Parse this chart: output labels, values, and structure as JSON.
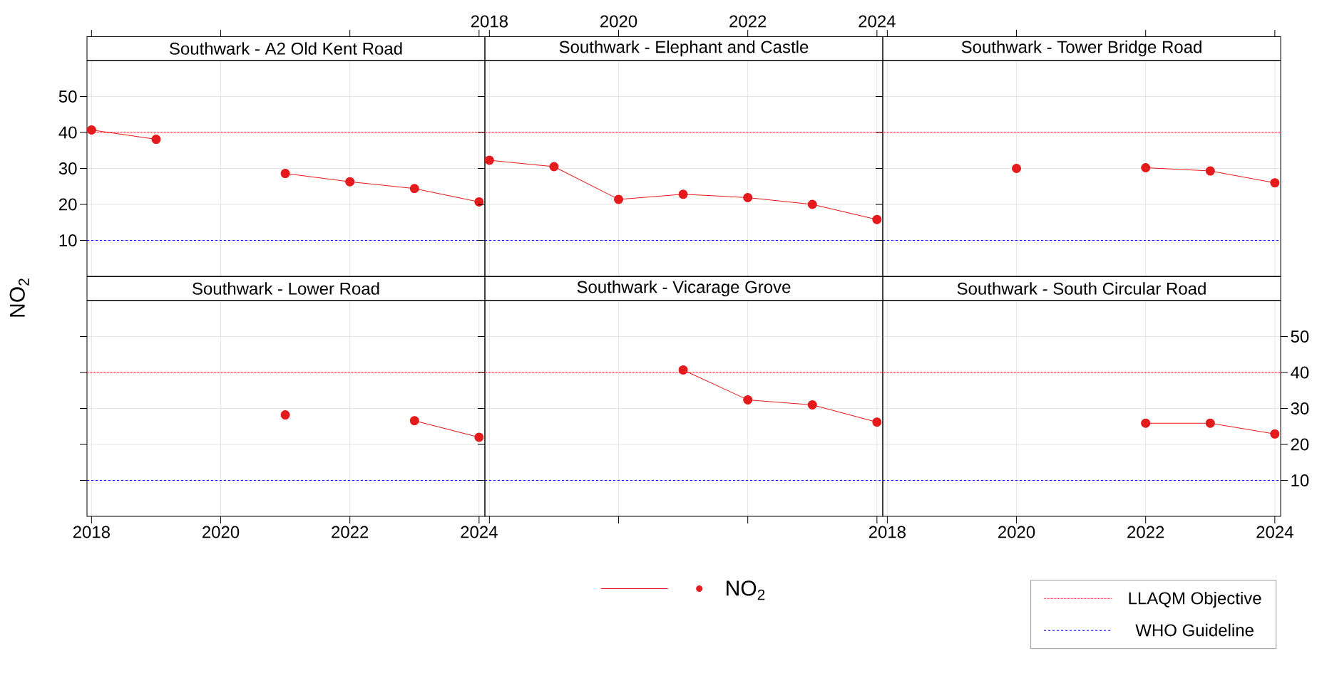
{
  "chart_data": [
    {
      "type": "line",
      "title": "Southwark - A2 Old Kent Road",
      "ylabel": "NO$_{2}$",
      "x": [
        2018,
        2019,
        2020,
        2021,
        2022,
        2023,
        2024
      ],
      "grid": true,
      "marker": "circle",
      "tick_labels": "y",
      "xlim": [
        2017.93,
        2024.09
      ],
      "xticks": [
        2018,
        2020,
        2022,
        2024
      ],
      "ylim": [
        0,
        60
      ],
      "yticks": [
        10,
        20,
        30,
        40,
        50
      ],
      "series": [
        {
          "color": "#e41a1c",
          "values": [
            40.7,
            38.1,
            null,
            28.6,
            26.3,
            24.4,
            20.7
          ]
        }
      ],
      "ref_lines": [
        {
          "axis": "y",
          "value": 40,
          "color": "#ff0000",
          "line_style": "dotted"
        },
        {
          "axis": "y",
          "value": 10,
          "color": "#0000ff",
          "line_style": "dashed"
        }
      ]
    },
    {
      "type": "line",
      "title": "Southwark - Elephant and Castle",
      "x": [
        2018,
        2019,
        2020,
        2021,
        2022,
        2023,
        2024
      ],
      "grid": true,
      "marker": "circle",
      "tick_labels": "x",
      "xlim": [
        2017.93,
        2024.09
      ],
      "xticks": [
        2018,
        2020,
        2022,
        2024
      ],
      "ylim": [
        0,
        60
      ],
      "yticks": [
        10,
        20,
        30,
        40,
        50
      ],
      "series": [
        {
          "color": "#e41a1c",
          "values": [
            32.3,
            30.5,
            21.4,
            22.8,
            21.9,
            20.0,
            15.8
          ]
        }
      ],
      "ref_lines": [
        {
          "axis": "y",
          "value": 40,
          "color": "#ff0000",
          "line_style": "dotted"
        },
        {
          "axis": "y",
          "value": 10,
          "color": "#0000ff",
          "line_style": "dashed"
        }
      ]
    },
    {
      "type": "line",
      "title": "Southwark - Tower Bridge Road",
      "x": [
        2020,
        2021,
        2022,
        2023,
        2024
      ],
      "grid": true,
      "marker": "circle",
      "tick_labels": false,
      "xlim": [
        2017.93,
        2024.09
      ],
      "xticks": [
        2018,
        2020,
        2022,
        2024
      ],
      "ylim": [
        0,
        60
      ],
      "yticks": [
        10,
        20,
        30,
        40,
        50
      ],
      "series": [
        {
          "color": "#e41a1c",
          "values": [
            30.0,
            null,
            30.2,
            29.3,
            26.0
          ]
        }
      ],
      "ref_lines": [
        {
          "axis": "y",
          "value": 40,
          "color": "#ff0000",
          "line_style": "dotted"
        },
        {
          "axis": "y",
          "value": 10,
          "color": "#0000ff",
          "line_style": "dashed"
        }
      ]
    },
    {
      "type": "line",
      "title": "Southwark - Lower Road",
      "x": [
        2021,
        2022,
        2023,
        2024
      ],
      "grid": true,
      "marker": "circle",
      "tick_labels": "x",
      "xlim": [
        2017.93,
        2024.09
      ],
      "xticks": [
        2018,
        2020,
        2022,
        2024
      ],
      "ylim": [
        0,
        60
      ],
      "yticks": [
        10,
        20,
        30,
        40,
        50
      ],
      "series": [
        {
          "color": "#e41a1c",
          "values": [
            28.2,
            null,
            26.6,
            22.0
          ]
        }
      ],
      "ref_lines": [
        {
          "axis": "y",
          "value": 40,
          "color": "#ff0000",
          "line_style": "dotted"
        },
        {
          "axis": "y",
          "value": 10,
          "color": "#0000ff",
          "line_style": "dashed"
        }
      ]
    },
    {
      "type": "line",
      "title": "Southwark - Vicarage Grove",
      "x": [
        2021,
        2022,
        2023,
        2024
      ],
      "grid": true,
      "marker": "circle",
      "tick_labels": false,
      "legend": "bottom",
      "xlim": [
        2017.93,
        2024.09
      ],
      "xticks": [
        2018,
        2020,
        2022,
        2024
      ],
      "ylim": [
        0,
        60
      ],
      "yticks": [
        10,
        20,
        30,
        40,
        50
      ],
      "series": [
        {
          "name": "NO$_{2}$",
          "color": "#e41a1c",
          "values": [
            40.7,
            32.4,
            31.0,
            26.2
          ]
        }
      ],
      "ref_lines": [
        {
          "axis": "y",
          "value": 40,
          "color": "#ff0000",
          "line_style": "dotted"
        },
        {
          "axis": "y",
          "value": 10,
          "color": "#0000ff",
          "line_style": "dashed"
        }
      ]
    },
    {
      "type": "line",
      "title": "Southwark - South Circular Road",
      "x": [
        2022,
        2023,
        2024
      ],
      "grid": true,
      "marker": "circle",
      "legend": "bottom right",
      "xlim": [
        2017.93,
        2024.09
      ],
      "xticks": [
        2018,
        2020,
        2022,
        2024
      ],
      "y2lim": [
        0,
        60
      ],
      "y2ticks": [
        10,
        20,
        30,
        40,
        50
      ],
      "series": [
        {
          "axis": "y2",
          "color": "#e41a1c",
          "values": [
            25.9,
            25.9,
            22.9
          ]
        }
      ],
      "ref_lines": [
        {
          "axis": "y2",
          "value": 40,
          "color": "#ff0000",
          "line_style": "dotted",
          "label": "LLAQM Objective"
        },
        {
          "axis": "y2",
          "value": 10,
          "color": "#0000ff",
          "line_style": "dashed",
          "label": "WHO Guideline"
        }
      ]
    }
  ]
}
